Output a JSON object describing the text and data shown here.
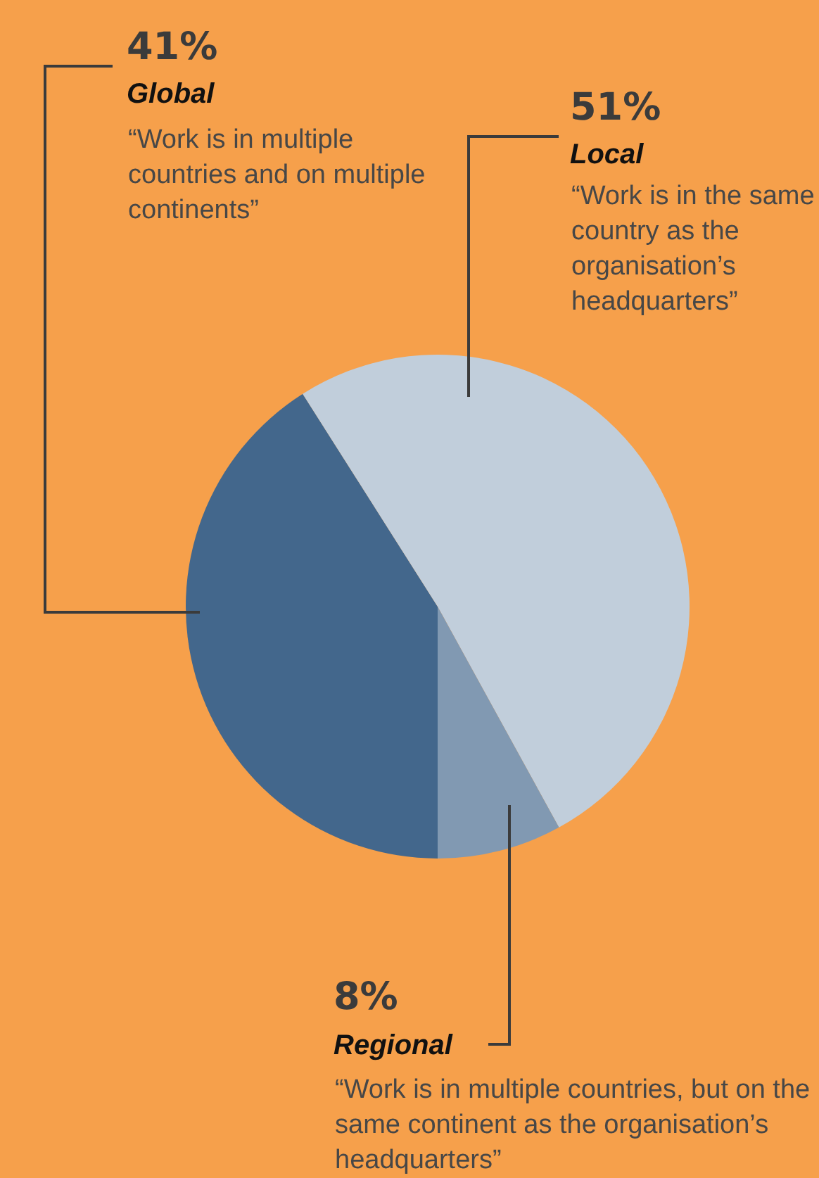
{
  "chart_data": {
    "type": "pie",
    "categories": [
      "Global",
      "Local",
      "Regional"
    ],
    "values": [
      41,
      51,
      8
    ],
    "colors": [
      "#43678c",
      "#c1cedb",
      "#8199b2"
    ],
    "value_labels": [
      "41%",
      "51%",
      "8%"
    ],
    "annotations": [
      "“Work is in multiple countries and on multiple continents”",
      "“Work is in the same country as the organisation’s headquarters”",
      "“Work is in multiple countries, but on the same continent as the organisation’s headquarters”"
    ],
    "legend": false
  }
}
